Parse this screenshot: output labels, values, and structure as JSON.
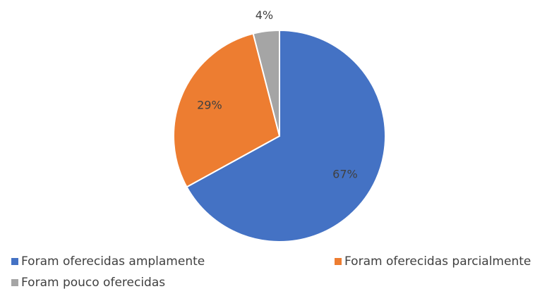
{
  "chart_data": {
    "type": "pie",
    "categories": [
      "Foram oferecidas amplamente",
      "Foram oferecidas parcialmente",
      "Foram pouco oferecidas"
    ],
    "values": [
      67,
      29,
      4
    ],
    "value_labels": [
      "67%",
      "29%",
      "4%"
    ],
    "colors": [
      "#4472c4",
      "#ed7d31",
      "#a5a5a5"
    ],
    "legend": "bottom"
  }
}
